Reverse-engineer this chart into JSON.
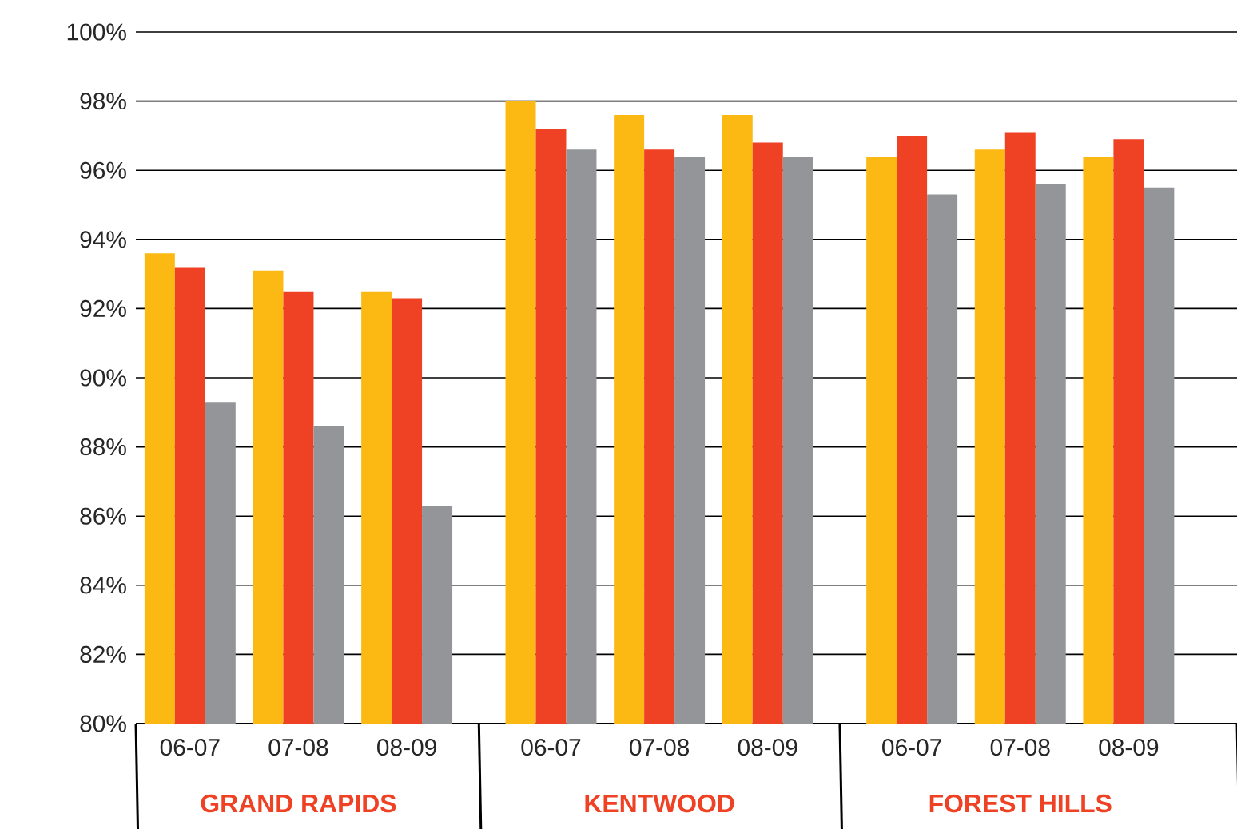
{
  "chart_data": {
    "type": "bar",
    "categories": [
      "06-07",
      "07-08",
      "08-09",
      "06-07",
      "07-08",
      "08-09",
      "06-07",
      "07-08",
      "08-09"
    ],
    "series": [
      {
        "color": "#fcb913",
        "values": [
          93.6,
          93.1,
          92.5,
          98.0,
          97.6,
          97.6,
          96.4,
          96.6,
          96.4
        ]
      },
      {
        "color": "#ef4123",
        "values": [
          93.2,
          92.5,
          92.3,
          97.2,
          96.6,
          96.8,
          97.0,
          97.1,
          96.9
        ]
      },
      {
        "color": "#939598",
        "values": [
          89.3,
          88.6,
          86.3,
          96.6,
          96.4,
          96.4,
          95.3,
          95.6,
          95.5
        ]
      }
    ],
    "ylim": [
      80,
      100
    ],
    "yticks": [
      {
        "value": 80,
        "label": "80%"
      },
      {
        "value": 82,
        "label": "82%"
      },
      {
        "value": 84,
        "label": "84%"
      },
      {
        "value": 86,
        "label": "86%"
      },
      {
        "value": 88,
        "label": "88%"
      },
      {
        "value": 90,
        "label": "90%"
      },
      {
        "value": 92,
        "label": "92%"
      },
      {
        "value": 94,
        "label": "94%"
      },
      {
        "value": 96,
        "label": "96%"
      },
      {
        "value": 98,
        "label": "98%"
      },
      {
        "value": 100,
        "label": "100%"
      }
    ],
    "grid": "y",
    "annotations": [
      "GRAND RAPIDS",
      "KENTWOOD",
      "FOREST HILLS"
    ]
  }
}
